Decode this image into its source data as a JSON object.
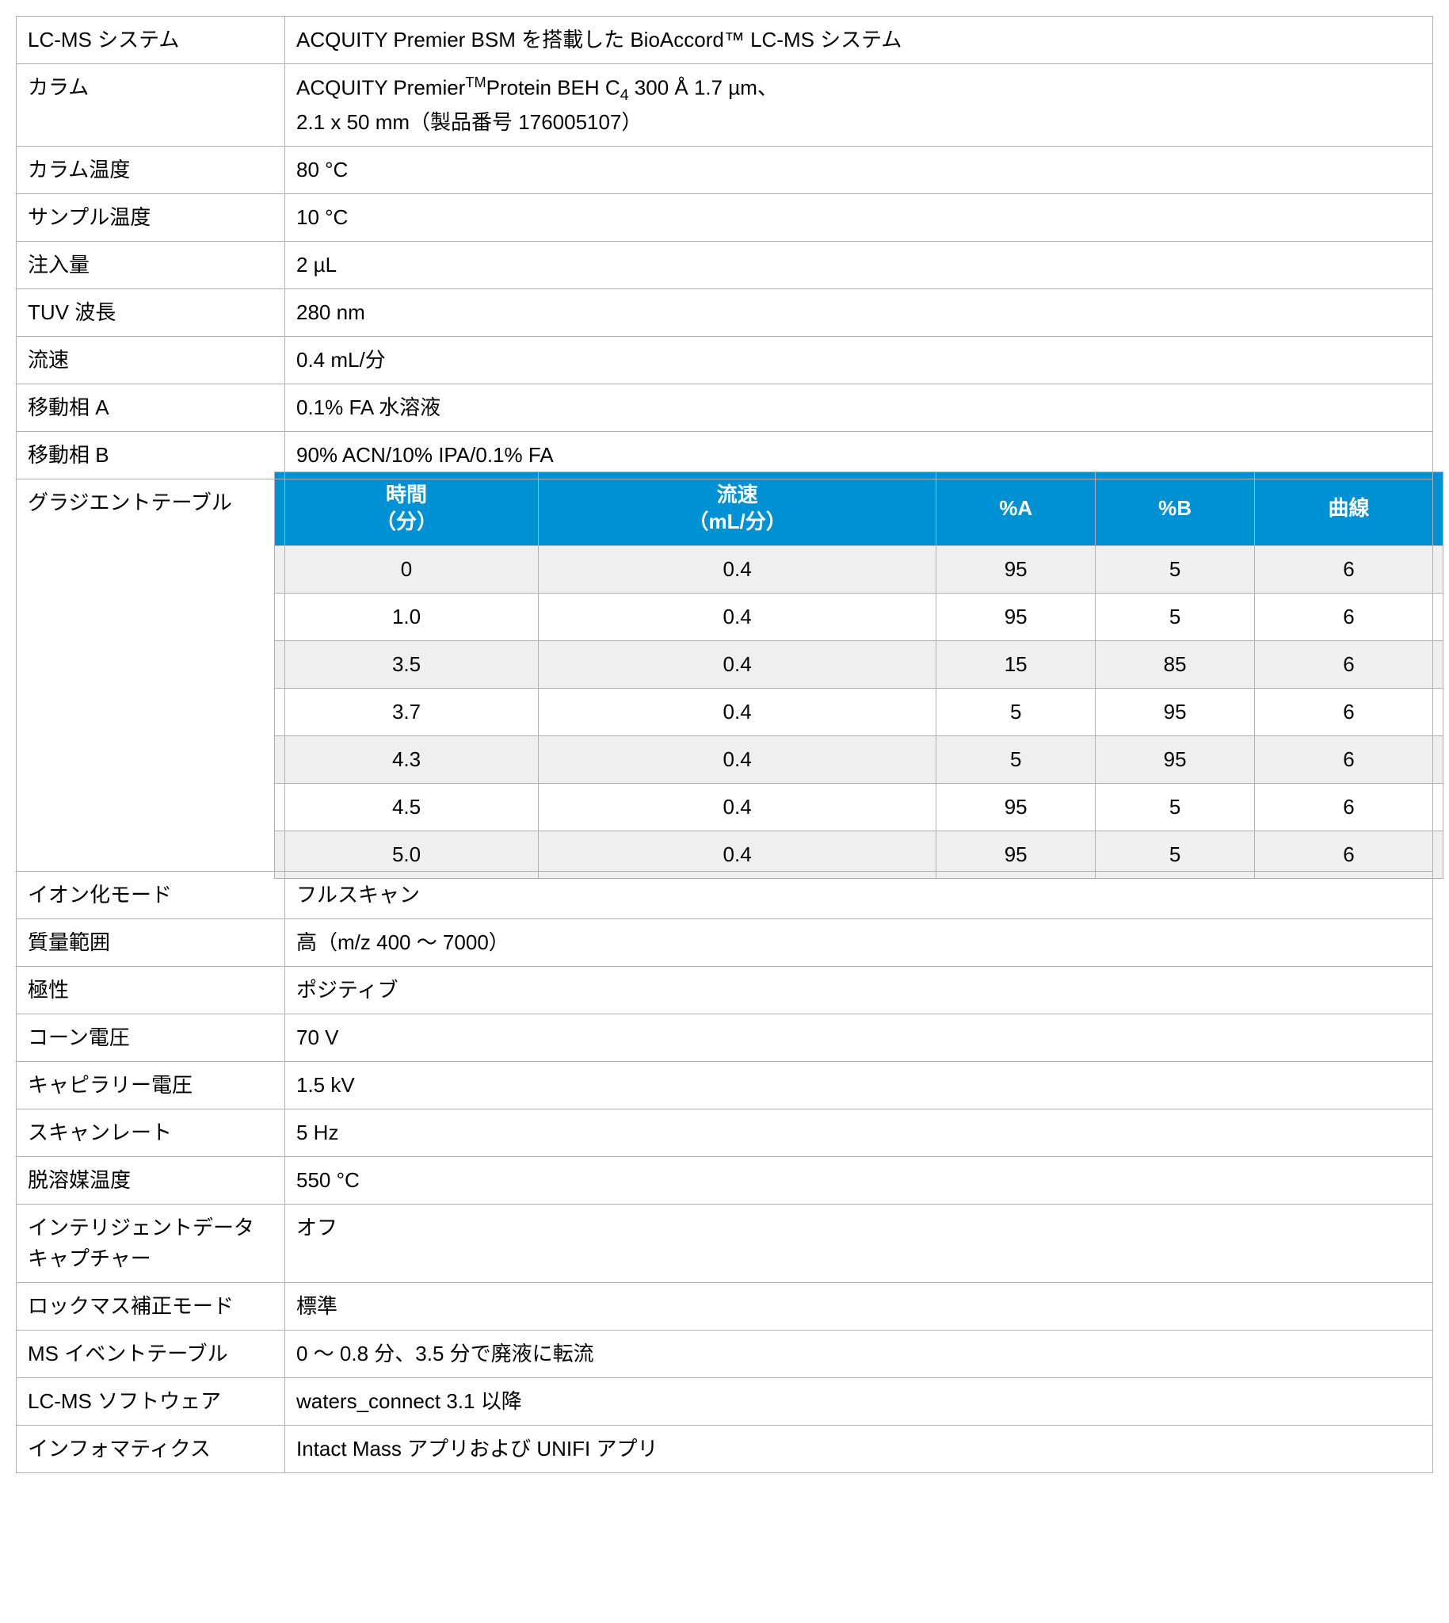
{
  "rows": [
    {
      "label": "LC-MS システム",
      "value": "ACQUITY Premier BSM を搭載した BioAccord™ LC-MS システム"
    },
    {
      "label": "カラム",
      "value": "ACQUITY Premier™Protein BEH C4 300 Å 1.7 µm、2.1 x 50 mm（製品番号 176005107）"
    },
    {
      "label": "カラム温度",
      "value": "80 °C"
    },
    {
      "label": "サンプル温度",
      "value": "10 °C"
    },
    {
      "label": "注入量",
      "value": "2 µL"
    },
    {
      "label": "TUV 波長",
      "value": "280 nm"
    },
    {
      "label": "流速",
      "value": "0.4 mL/分"
    },
    {
      "label": "移動相 A",
      "value": "0.1% FA 水溶液"
    },
    {
      "label": "移動相 B",
      "value": "90% ACN/10% IPA/0.1% FA"
    }
  ],
  "gradient": {
    "label": "グラジエントテーブル",
    "headers": [
      "時間\n（分）",
      "流速\n（mL/分）",
      "%A",
      "%B",
      "曲線"
    ],
    "header_bg": "#0090d4",
    "header_fg": "#ffffff",
    "odd_bg": "#efefef",
    "even_bg": "#ffffff",
    "border_color": "#b0b0b0",
    "data": [
      [
        "0",
        "0.4",
        "95",
        "5",
        "6"
      ],
      [
        "1.0",
        "0.4",
        "95",
        "5",
        "6"
      ],
      [
        "3.5",
        "0.4",
        "15",
        "85",
        "6"
      ],
      [
        "3.7",
        "0.4",
        "5",
        "95",
        "6"
      ],
      [
        "4.3",
        "0.4",
        "5",
        "95",
        "6"
      ],
      [
        "4.5",
        "0.4",
        "95",
        "5",
        "6"
      ],
      [
        "5.0",
        "0.4",
        "95",
        "5",
        "6"
      ]
    ]
  },
  "rows_after": [
    {
      "label": "イオン化モード",
      "value": "フルスキャン"
    },
    {
      "label": "質量範囲",
      "value": "高（m/z 400 ～ 7000）"
    },
    {
      "label": "極性",
      "value": "ポジティブ"
    },
    {
      "label": "コーン電圧",
      "value": "70 V"
    },
    {
      "label": "キャピラリー電圧",
      "value": "1.5 kV"
    },
    {
      "label": "スキャンレート",
      "value": "5 Hz"
    },
    {
      "label": "脱溶媒温度",
      "value": "550 °C"
    },
    {
      "label": "インテリジェントデータキャプチャー",
      "value": "オフ"
    },
    {
      "label": "ロックマス補正モード",
      "value": "標準"
    },
    {
      "label": "MS イベントテーブル",
      "value": "0 ～ 0.8 分、3.5 分で廃液に転流"
    },
    {
      "label": "LC-MS ソフトウェア",
      "value": "waters_connect 3.1 以降"
    },
    {
      "label": "インフォマティクス",
      "value": "Intact Mass アプリおよび UNIFI アプリ"
    }
  ],
  "column_value_html": "ACQUITY Premier<span class=\"tm\">TM</span>Protein BEH C<span class=\"sub4\">4</span> 300 Å 1.7 µm、<br>2.1 x 50 mm（製品番号 176005107）"
}
